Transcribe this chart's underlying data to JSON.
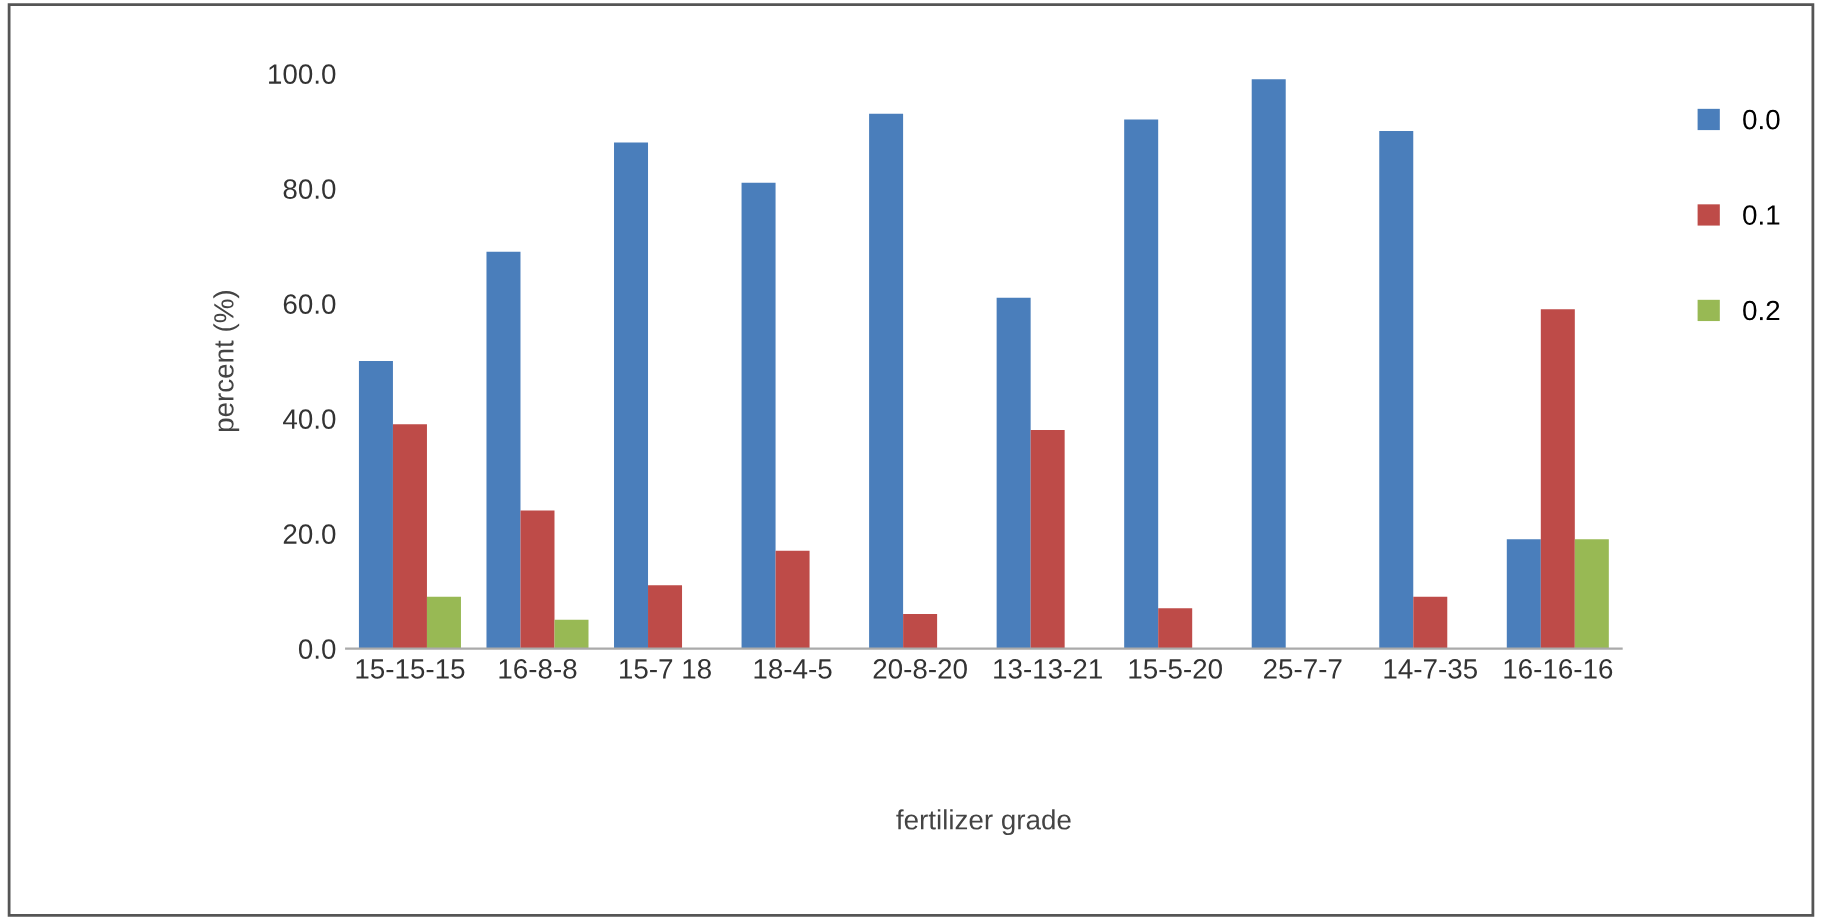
{
  "chart_data": {
    "type": "bar",
    "xlabel": "fertilizer grade",
    "ylabel": "percent (%)",
    "categories": [
      "15-15-15",
      "16-8-8",
      "15-7 18",
      "18-4-5",
      "20-8-20",
      "13-13-21",
      "15-5-20",
      "25-7-7",
      "14-7-35",
      "16-16-16"
    ],
    "series": [
      {
        "name": "0.0",
        "color": "#4a7ebb",
        "values": [
          50,
          69,
          88,
          81,
          93,
          61,
          92,
          99,
          90,
          19
        ]
      },
      {
        "name": "0.1",
        "color": "#be4b48",
        "values": [
          39,
          24,
          11,
          17,
          6,
          38,
          7,
          0,
          9,
          59
        ]
      },
      {
        "name": "0.2",
        "color": "#98b954",
        "values": [
          9,
          5,
          0,
          0,
          0,
          0,
          0,
          0,
          0,
          19
        ]
      }
    ],
    "ylim": [
      0,
      100
    ],
    "yticks": [
      {
        "value": 0,
        "label": "0.0"
      },
      {
        "value": 20,
        "label": "20.0"
      },
      {
        "value": 40,
        "label": "40.0"
      },
      {
        "value": 60,
        "label": "60.0"
      },
      {
        "value": 80,
        "label": "80.0"
      },
      {
        "value": 100,
        "label": "100.0"
      }
    ],
    "grid": false,
    "legend": "right"
  }
}
